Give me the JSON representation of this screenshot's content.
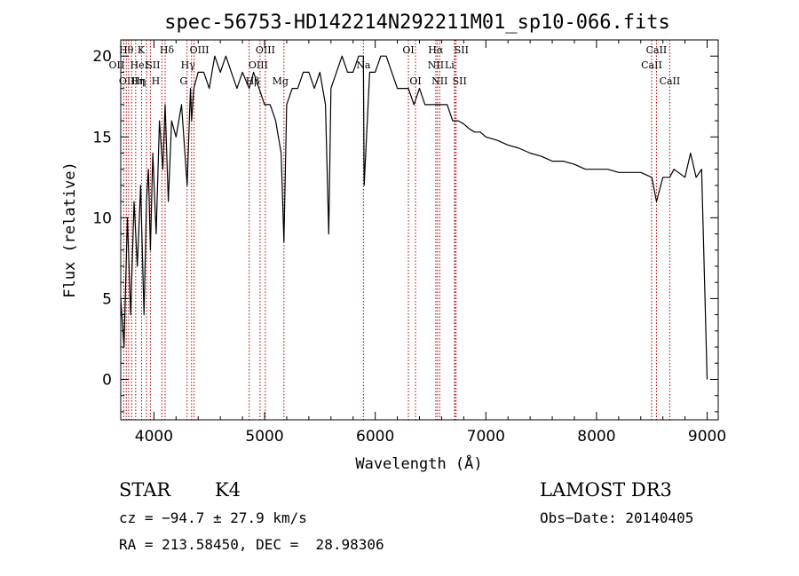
{
  "chart_data": {
    "type": "line",
    "title": "spec-56753-HD142214N292211M01_sp10-066.fits",
    "xlabel": "Wavelength (Å)",
    "ylabel": "Flux (relative)",
    "xlim": [
      3700,
      9100
    ],
    "ylim": [
      -2.5,
      21
    ],
    "xticks": [
      4000,
      5000,
      6000,
      7000,
      8000,
      9000
    ],
    "yticks": [
      0,
      5,
      10,
      15,
      20
    ],
    "series": [
      {
        "name": "spectrum",
        "x": [
          3700,
          3730,
          3760,
          3790,
          3820,
          3850,
          3880,
          3910,
          3933,
          3950,
          3968,
          3990,
          4020,
          4050,
          4080,
          4101,
          4130,
          4160,
          4200,
          4250,
          4300,
          4330,
          4340,
          4360,
          4400,
          4450,
          4500,
          4550,
          4600,
          4650,
          4700,
          4750,
          4800,
          4861,
          4900,
          4950,
          5000,
          5050,
          5100,
          5150,
          5175,
          5200,
          5250,
          5300,
          5350,
          5400,
          5450,
          5500,
          5550,
          5580,
          5600,
          5650,
          5700,
          5750,
          5800,
          5850,
          5893,
          5900,
          5950,
          6000,
          6050,
          6100,
          6150,
          6200,
          6250,
          6300,
          6350,
          6400,
          6450,
          6500,
          6563,
          6600,
          6650,
          6700,
          6750,
          6800,
          6850,
          6900,
          6950,
          7000,
          7100,
          7200,
          7300,
          7400,
          7500,
          7600,
          7700,
          7800,
          7900,
          8000,
          8100,
          8200,
          8300,
          8400,
          8500,
          8542,
          8600,
          8662,
          8700,
          8800,
          8850,
          8900,
          8950,
          9000
        ],
        "values": [
          5,
          2,
          10,
          4,
          11,
          7,
          12,
          4,
          11,
          13,
          8,
          14,
          9,
          16,
          13,
          17,
          11,
          16,
          15,
          17,
          12,
          18,
          16,
          18,
          19,
          19,
          18,
          20,
          19,
          20,
          19,
          18,
          19,
          18,
          19,
          18,
          17,
          17,
          16,
          14,
          8.5,
          17,
          18,
          18,
          19,
          19,
          18,
          19,
          17,
          9,
          18,
          19,
          20,
          19,
          19,
          20,
          20,
          12,
          19,
          19,
          20,
          20,
          19,
          18,
          18,
          18,
          17,
          18,
          17,
          17,
          17,
          17,
          17,
          16,
          16,
          15.8,
          15.5,
          15.3,
          15.3,
          15,
          14.8,
          14.5,
          14.3,
          14,
          13.8,
          13.5,
          13.5,
          13.3,
          13,
          13,
          13,
          12.8,
          12.8,
          12.8,
          12.5,
          11,
          12.5,
          12.5,
          13,
          12.5,
          14,
          12.5,
          13,
          0
        ]
      }
    ],
    "line_color": "#000000",
    "marker_color": "#b00000",
    "spectral_lines": [
      {
        "wavelength": 3727,
        "label": "OII",
        "row": 1,
        "dx": -8
      },
      {
        "wavelength": 3750,
        "label": "Hθ",
        "row": 0,
        "dx": 0
      },
      {
        "wavelength": 3771,
        "label": "OIII",
        "row": 2,
        "dx": 0
      },
      {
        "wavelength": 3798,
        "label": "Hη",
        "row": 2,
        "dx": 8
      },
      {
        "wavelength": 3835,
        "label": "HeI",
        "row": 1,
        "dx": 4
      },
      {
        "wavelength": 3889,
        "label": "η",
        "row": 2,
        "dx": 0
      },
      {
        "wavelength": 3933,
        "label": "K",
        "row": 0,
        "dx": -6
      },
      {
        "wavelength": 3968,
        "label": "H",
        "row": 2,
        "dx": 6
      },
      {
        "wavelength": 4072,
        "label": "SII",
        "row": 1,
        "dx": -10
      },
      {
        "wavelength": 4101,
        "label": "Hδ",
        "row": 0,
        "dx": 2
      },
      {
        "wavelength": 4300,
        "label": "G",
        "row": 2,
        "dx": -4
      },
      {
        "wavelength": 4340,
        "label": "Hγ",
        "row": 1,
        "dx": -4
      },
      {
        "wavelength": 4363,
        "label": "OIII",
        "row": 0,
        "dx": 6
      },
      {
        "wavelength": 4861,
        "label": "Hβ",
        "row": 2,
        "dx": 4
      },
      {
        "wavelength": 4959,
        "label": "OIII",
        "row": 1,
        "dx": -2
      },
      {
        "wavelength": 5007,
        "label": "OIII",
        "row": 0,
        "dx": 0
      },
      {
        "wavelength": 5175,
        "label": "Mg",
        "row": 2,
        "dx": -4
      },
      {
        "wavelength": 5893,
        "label": "Na",
        "row": 1,
        "dx": 0
      },
      {
        "wavelength": 6300,
        "label": "OI",
        "row": 0,
        "dx": 0
      },
      {
        "wavelength": 6364,
        "label": "OI",
        "row": 2,
        "dx": 0
      },
      {
        "wavelength": 6548,
        "label": "NII",
        "row": 1,
        "dx": 0
      },
      {
        "wavelength": 6563,
        "label": "Hα",
        "row": 0,
        "dx": -2
      },
      {
        "wavelength": 6583,
        "label": "NII",
        "row": 2,
        "dx": 0
      },
      {
        "wavelength": 6716,
        "label": "SII",
        "row": 0,
        "dx": 8
      },
      {
        "wavelength": 6720,
        "label": "Li",
        "row": 1,
        "dx": -6
      },
      {
        "wavelength": 6731,
        "label": "SII",
        "row": 2,
        "dx": 4
      },
      {
        "wavelength": 8498,
        "label": "CaII",
        "row": 1,
        "dx": 0
      },
      {
        "wavelength": 8542,
        "label": "CaII",
        "row": 0,
        "dx": 0
      },
      {
        "wavelength": 8662,
        "label": "CaII",
        "row": 2,
        "dx": 0
      }
    ]
  },
  "info": {
    "class": "STAR",
    "subclass": "K4",
    "survey": "LAMOST DR3",
    "cz": "cz = −94.7 ± 27.9 km/s",
    "obs_date": "Obs−Date: 20140405",
    "coords": "RA = 213.58450, DEC =  28.98306"
  }
}
